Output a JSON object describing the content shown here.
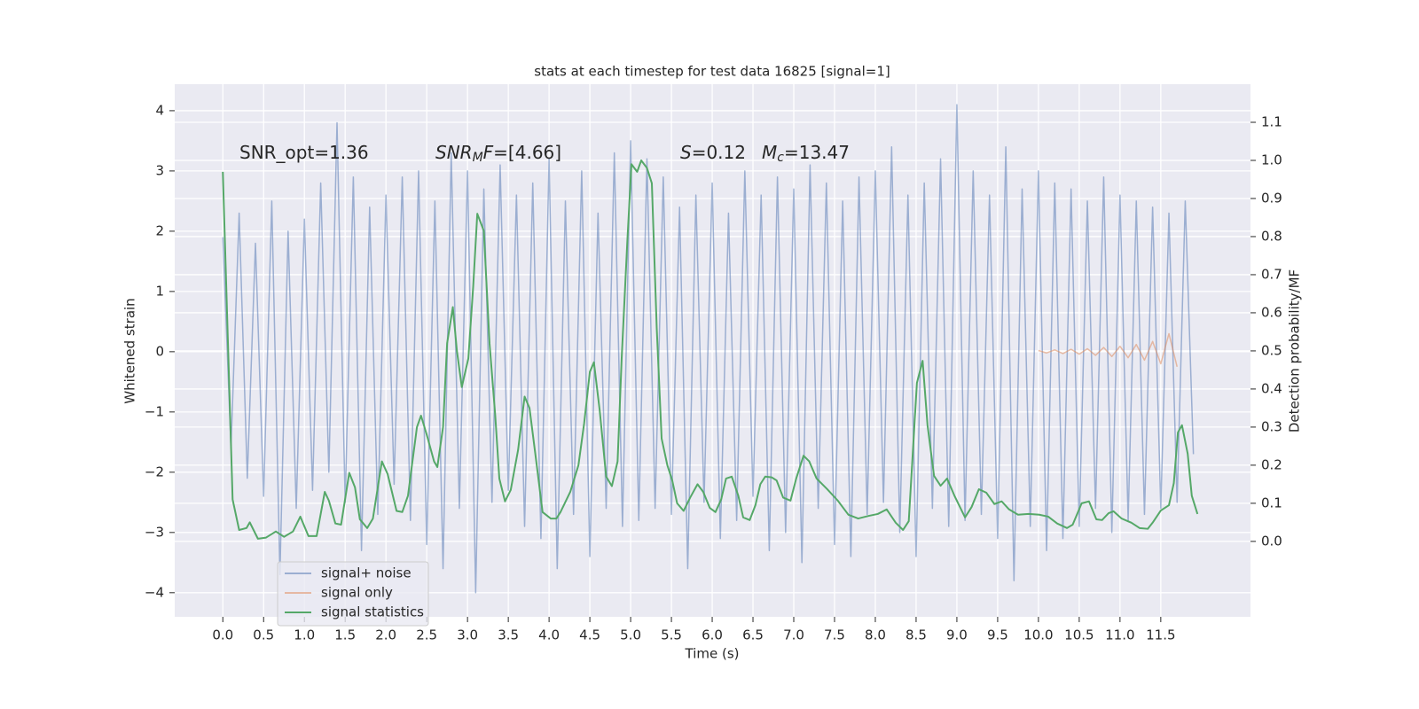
{
  "chart_data": {
    "type": "line",
    "title": "stats at each timestep for test data 16825 [signal=1]",
    "xlabel": "Time (s)",
    "ylabel": "Whitened strain",
    "y2label": "Detection probability/MF",
    "xlim": [
      -0.59,
      12.6
    ],
    "ylim": [
      -4.4,
      4.44
    ],
    "y2lim": [
      -0.198,
      1.2
    ],
    "xticks": [
      {
        "value": 0,
        "label": "0.0"
      },
      0.5,
      {
        "value": 1,
        "label": "1.0"
      },
      1.5,
      {
        "value": 2,
        "label": "2.0"
      },
      2.5,
      {
        "value": 3,
        "label": "3.0"
      },
      3.5,
      {
        "value": 4,
        "label": "4.0"
      },
      4.5,
      {
        "value": 5,
        "label": "5.0"
      },
      5.5,
      {
        "value": 6,
        "label": "6.0"
      },
      6.5,
      {
        "value": 7,
        "label": "7.0"
      },
      7.5,
      {
        "value": 8,
        "label": "8.0"
      },
      8.5,
      {
        "value": 9,
        "label": "9.0"
      },
      9.5,
      {
        "value": 10,
        "label": "10.0"
      },
      10.5,
      {
        "value": 11,
        "label": "11.0"
      },
      11.5
    ],
    "yticks": [
      {
        "value": -4,
        "label": "−4"
      },
      {
        "value": -3,
        "label": "−3"
      },
      {
        "value": -2,
        "label": "−2"
      },
      {
        "value": -1,
        "label": "−1"
      },
      0,
      1,
      2,
      3,
      4
    ],
    "y2ticks": [
      {
        "value": 0,
        "label": "0.0"
      },
      0.1,
      0.2,
      0.3,
      0.4,
      0.5,
      0.6,
      0.7,
      0.8,
      0.9,
      {
        "value": 1,
        "label": "1.0"
      },
      1.1
    ],
    "grid": true,
    "legend": "lower left",
    "annotations": [
      {
        "parts": [
          {
            "text": "SNR_opt=1.36"
          }
        ]
      },
      {
        "parts": [
          {
            "text": "SNR",
            "italic": true
          },
          {
            "text": "M",
            "italic": true,
            "sub": true
          },
          {
            "text": "F",
            "italic": true
          },
          {
            "text": "=[4.66]"
          }
        ]
      },
      {
        "parts": [
          {
            "text": "S",
            "italic": true
          },
          {
            "text": "=0.12"
          }
        ]
      },
      {
        "parts": [
          {
            "text": "M",
            "italic": true
          },
          {
            "text": "c",
            "italic": true,
            "sub": true
          },
          {
            "text": "=13.47"
          }
        ]
      }
    ],
    "series": [
      {
        "name": "signal+ noise",
        "color": "#4c72b0",
        "opacity": 0.5,
        "x": [
          0.0,
          0.1,
          0.2,
          0.3,
          0.4,
          0.5,
          0.6,
          0.7,
          0.8,
          0.9,
          1.0,
          1.1,
          1.2,
          1.3,
          1.4,
          1.5,
          1.6,
          1.7,
          1.8,
          1.9,
          2.0,
          2.1,
          2.2,
          2.3,
          2.4,
          2.5,
          2.6,
          2.7,
          2.8,
          2.9,
          3.0,
          3.1,
          3.2,
          3.3,
          3.4,
          3.5,
          3.6,
          3.7,
          3.8,
          3.9,
          4.0,
          4.1,
          4.2,
          4.3,
          4.4,
          4.5,
          4.6,
          4.7,
          4.8,
          4.9,
          5.0,
          5.1,
          5.2,
          5.3,
          5.4,
          5.5,
          5.6,
          5.7,
          5.8,
          5.9,
          6.0,
          6.1,
          6.2,
          6.3,
          6.4,
          6.5,
          6.6,
          6.7,
          6.8,
          6.9,
          7.0,
          7.1,
          7.2,
          7.3,
          7.4,
          7.5,
          7.6,
          7.7,
          7.8,
          7.9,
          8.0,
          8.1,
          8.2,
          8.3,
          8.4,
          8.5,
          8.6,
          8.7,
          8.8,
          8.9,
          9.0,
          9.1,
          9.2,
          9.3,
          9.4,
          9.5,
          9.6,
          9.7,
          9.8,
          9.9,
          10.0,
          10.1,
          10.2,
          10.3,
          10.4,
          10.5,
          10.6,
          10.7,
          10.8,
          10.9,
          11.0,
          11.1,
          11.2,
          11.3,
          11.4,
          11.5,
          11.6,
          11.7,
          11.8,
          11.9
        ],
        "values": [
          1.9,
          -1.6,
          2.3,
          -2.1,
          1.8,
          -2.4,
          2.5,
          -3.7,
          2.0,
          -2.6,
          2.2,
          -2.3,
          2.8,
          -2.0,
          3.8,
          -2.5,
          2.9,
          -3.3,
          2.4,
          -2.7,
          2.6,
          -2.2,
          2.9,
          -2.8,
          3.0,
          -3.2,
          2.5,
          -3.6,
          3.3,
          -2.6,
          3.0,
          -4.0,
          2.7,
          -2.5,
          3.1,
          -2.3,
          2.6,
          -2.9,
          2.8,
          -3.1,
          3.2,
          -3.6,
          2.5,
          -2.7,
          3.0,
          -3.4,
          2.3,
          -2.6,
          3.3,
          -2.9,
          3.5,
          -2.8,
          3.2,
          -2.6,
          2.9,
          -2.7,
          2.4,
          -3.6,
          2.6,
          -2.5,
          2.8,
          -3.1,
          2.3,
          -2.8,
          3.0,
          -2.4,
          2.6,
          -3.3,
          2.9,
          -3.0,
          2.7,
          -3.5,
          3.1,
          -2.6,
          2.8,
          -3.2,
          2.5,
          -3.4,
          2.9,
          -2.7,
          3.0,
          -2.5,
          3.4,
          -3.0,
          2.6,
          -3.4,
          2.8,
          -2.6,
          3.2,
          -2.9,
          4.1,
          -2.8,
          3.0,
          -2.7,
          2.6,
          -3.1,
          3.4,
          -3.8,
          2.7,
          -2.9,
          3.0,
          -3.3,
          2.8,
          -3.1,
          2.7,
          -2.9,
          2.5,
          -2.6,
          2.9,
          -3.0,
          2.6,
          -2.8,
          2.5,
          -2.7,
          2.4,
          -2.6,
          2.3,
          -2.5,
          2.5,
          -1.7
        ]
      },
      {
        "name": "signal only",
        "color": "#dd8452",
        "opacity": 0.5,
        "x": [
          10.0,
          10.1,
          10.2,
          10.3,
          10.4,
          10.5,
          10.6,
          10.7,
          10.8,
          10.9,
          11.0,
          11.1,
          11.2,
          11.3,
          11.4,
          11.5,
          11.6,
          11.7
        ],
        "values": [
          0.02,
          -0.02,
          0.03,
          -0.03,
          0.04,
          -0.04,
          0.05,
          -0.06,
          0.07,
          -0.08,
          0.09,
          -0.1,
          0.12,
          -0.14,
          0.17,
          -0.2,
          0.3,
          -0.25
        ]
      },
      {
        "name": "signal statistics",
        "color": "#55a868",
        "opacity": 1,
        "axis": "y2",
        "x": [
          0.0,
          0.12,
          0.2,
          0.29,
          0.33,
          0.43,
          0.53,
          0.65,
          0.75,
          0.86,
          0.95,
          1.05,
          1.15,
          1.25,
          1.3,
          1.38,
          1.45,
          1.55,
          1.62,
          1.68,
          1.77,
          1.84,
          1.95,
          2.02,
          2.13,
          2.2,
          2.27,
          2.38,
          2.43,
          2.5,
          2.59,
          2.63,
          2.7,
          2.75,
          2.82,
          2.87,
          2.93,
          3.01,
          3.07,
          3.12,
          3.2,
          3.27,
          3.34,
          3.39,
          3.46,
          3.53,
          3.62,
          3.7,
          3.76,
          3.84,
          3.92,
          4.02,
          4.09,
          4.14,
          4.26,
          4.36,
          4.43,
          4.5,
          4.55,
          4.62,
          4.7,
          4.77,
          4.84,
          4.89,
          4.96,
          5.01,
          5.08,
          5.13,
          5.2,
          5.26,
          5.32,
          5.38,
          5.45,
          5.51,
          5.57,
          5.65,
          5.73,
          5.82,
          5.89,
          5.97,
          6.04,
          6.11,
          6.17,
          6.24,
          6.32,
          6.38,
          6.46,
          6.53,
          6.59,
          6.65,
          6.73,
          6.79,
          6.87,
          6.96,
          7.03,
          7.12,
          7.19,
          7.28,
          7.41,
          7.54,
          7.67,
          7.79,
          7.92,
          8.03,
          8.14,
          8.25,
          8.34,
          8.41,
          8.51,
          8.58,
          8.64,
          8.72,
          8.8,
          8.88,
          8.97,
          9.1,
          9.18,
          9.27,
          9.36,
          9.46,
          9.55,
          9.64,
          9.75,
          9.88,
          10.01,
          10.12,
          10.23,
          10.35,
          10.42,
          10.53,
          10.62,
          10.71,
          10.78,
          10.86,
          10.92,
          11.02,
          11.14,
          11.24,
          11.34,
          11.4,
          11.5,
          11.6,
          11.66,
          11.71,
          11.76,
          11.83,
          11.88,
          11.95
        ],
        "values": [
          0.97,
          0.11,
          0.03,
          0.035,
          0.05,
          0.007,
          0.01,
          0.026,
          0.012,
          0.026,
          0.065,
          0.014,
          0.014,
          0.13,
          0.107,
          0.047,
          0.044,
          0.18,
          0.142,
          0.058,
          0.035,
          0.06,
          0.21,
          0.177,
          0.08,
          0.077,
          0.12,
          0.3,
          0.33,
          0.28,
          0.21,
          0.195,
          0.3,
          0.52,
          0.615,
          0.5,
          0.405,
          0.48,
          0.67,
          0.86,
          0.815,
          0.52,
          0.33,
          0.165,
          0.105,
          0.135,
          0.24,
          0.38,
          0.35,
          0.215,
          0.077,
          0.06,
          0.06,
          0.077,
          0.13,
          0.2,
          0.31,
          0.445,
          0.47,
          0.345,
          0.17,
          0.145,
          0.21,
          0.48,
          0.79,
          0.99,
          0.97,
          1.0,
          0.98,
          0.94,
          0.56,
          0.27,
          0.2,
          0.16,
          0.1,
          0.08,
          0.115,
          0.15,
          0.13,
          0.088,
          0.077,
          0.11,
          0.165,
          0.17,
          0.12,
          0.063,
          0.056,
          0.095,
          0.15,
          0.17,
          0.168,
          0.16,
          0.115,
          0.107,
          0.165,
          0.225,
          0.21,
          0.165,
          0.137,
          0.107,
          0.07,
          0.06,
          0.067,
          0.072,
          0.084,
          0.049,
          0.03,
          0.053,
          0.416,
          0.474,
          0.305,
          0.172,
          0.146,
          0.165,
          0.12,
          0.063,
          0.09,
          0.137,
          0.128,
          0.098,
          0.105,
          0.084,
          0.07,
          0.072,
          0.07,
          0.065,
          0.047,
          0.035,
          0.044,
          0.1,
          0.105,
          0.058,
          0.056,
          0.074,
          0.079,
          0.06,
          0.049,
          0.035,
          0.033,
          0.049,
          0.081,
          0.095,
          0.153,
          0.286,
          0.305,
          0.23,
          0.12,
          0.072
        ]
      }
    ]
  }
}
